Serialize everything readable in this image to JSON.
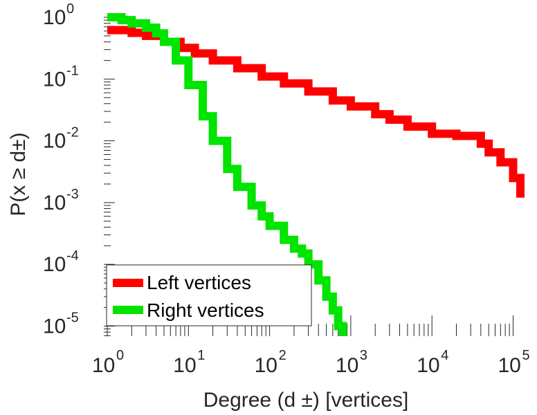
{
  "chart_data": {
    "type": "line",
    "xscale": "log",
    "yscale": "log",
    "xlim": [
      1,
      150000
    ],
    "ylim": [
      6e-06,
      1.2
    ],
    "xlabel": "Degree (d ±) [vertices]",
    "ylabel": "P(x ≥ d±)",
    "x_ticks": [
      {
        "base": "10",
        "exp": "0",
        "value": 1
      },
      {
        "base": "10",
        "exp": "1",
        "value": 10
      },
      {
        "base": "10",
        "exp": "2",
        "value": 100
      },
      {
        "base": "10",
        "exp": "3",
        "value": 1000
      },
      {
        "base": "10",
        "exp": "4",
        "value": 10000
      },
      {
        "base": "10",
        "exp": "5",
        "value": 100000
      }
    ],
    "y_ticks": [
      {
        "base": "10",
        "exp": "0",
        "value": 1
      },
      {
        "base": "10",
        "exp": "-1",
        "value": 0.1
      },
      {
        "base": "10",
        "exp": "-2",
        "value": 0.01
      },
      {
        "base": "10",
        "exp": "-3",
        "value": 0.001
      },
      {
        "base": "10",
        "exp": "-4",
        "value": 0.0001
      },
      {
        "base": "10",
        "exp": "-5",
        "value": 1e-05
      }
    ],
    "legend": {
      "position": "bottom-left"
    },
    "series": [
      {
        "name": "Left vertices",
        "color": "#ff0000",
        "x": [
          1,
          2,
          3,
          5,
          8,
          12,
          20,
          40,
          80,
          150,
          300,
          600,
          1000,
          2000,
          3000,
          5000,
          10000,
          20000,
          30000,
          40000,
          50000,
          70000,
          100000,
          130000
        ],
        "y": [
          0.62,
          0.56,
          0.5,
          0.4,
          0.32,
          0.26,
          0.2,
          0.15,
          0.11,
          0.085,
          0.063,
          0.045,
          0.036,
          0.027,
          0.022,
          0.017,
          0.013,
          0.012,
          0.012,
          0.009,
          0.0065,
          0.0045,
          0.0025,
          0.0012
        ]
      },
      {
        "name": "Right vertices",
        "color": "#00e400",
        "x": [
          1,
          1.5,
          2,
          3,
          4,
          5,
          7,
          10,
          15,
          20,
          30,
          40,
          60,
          80,
          100,
          150,
          200,
          250,
          300,
          400,
          500,
          600,
          700,
          800
        ],
        "y": [
          1.0,
          0.9,
          0.8,
          0.68,
          0.55,
          0.4,
          0.2,
          0.08,
          0.025,
          0.01,
          0.0035,
          0.0018,
          0.0009,
          0.0006,
          0.00042,
          0.00025,
          0.00018,
          0.00015,
          0.0001,
          5.5e-05,
          3e-05,
          1.8e-05,
          1e-05,
          6.5e-06
        ]
      }
    ]
  }
}
